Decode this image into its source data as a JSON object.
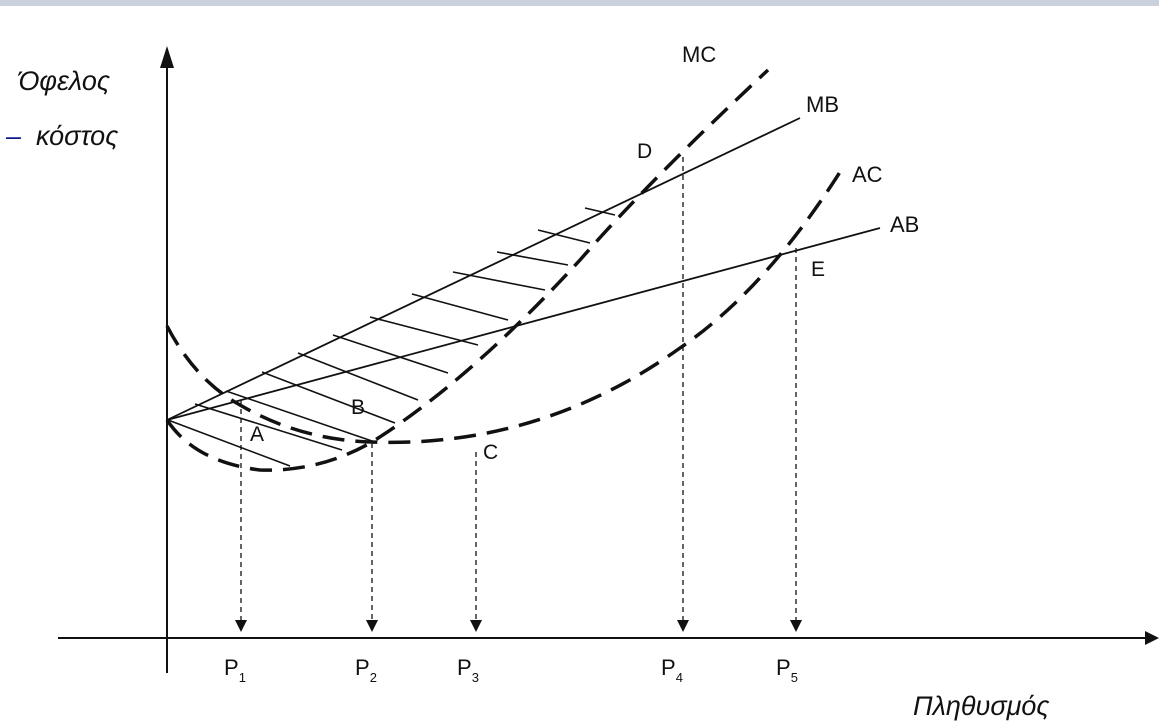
{
  "axes": {
    "y_title_line1": "Όφελος",
    "y_title_dash": "–",
    "y_title_line2": "κόστος",
    "x_title": "Πληθυσμός"
  },
  "curves": {
    "mc": "MC",
    "mb": "MB",
    "ac": "AC",
    "ab": "AB"
  },
  "points": {
    "a": "A",
    "b": "B",
    "c": "C",
    "d": "D",
    "e": "E"
  },
  "ticks": [
    {
      "main": "P",
      "sub": "1"
    },
    {
      "main": "P",
      "sub": "2"
    },
    {
      "main": "P",
      "sub": "3"
    },
    {
      "main": "P",
      "sub": "4"
    },
    {
      "main": "P",
      "sub": "5"
    }
  ],
  "colors": {
    "line": "#111111",
    "dash_accent": "#0a1a8c",
    "top_band": "#c9d2dc"
  }
}
